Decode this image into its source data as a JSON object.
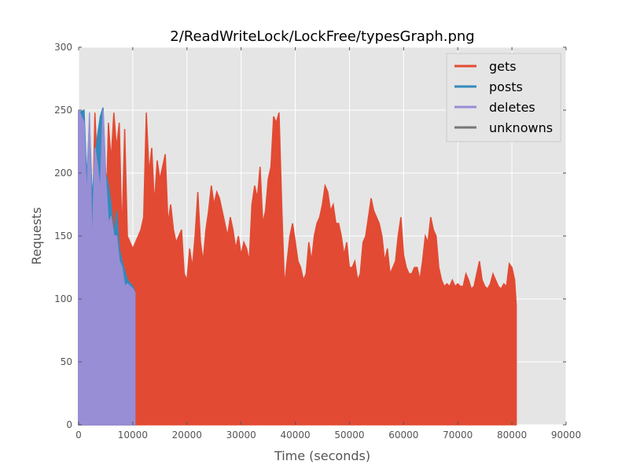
{
  "chart_data": {
    "type": "area",
    "title": "2/ReadWriteLock/LockFree/typesGraph.png",
    "xlabel": "Time (seconds)",
    "ylabel": "Requests",
    "xlim": [
      0,
      90000
    ],
    "ylim": [
      0,
      300
    ],
    "xticks": [
      "0",
      "10000",
      "20000",
      "30000",
      "40000",
      "50000",
      "60000",
      "70000",
      "80000",
      "90000"
    ],
    "yticks": [
      "0",
      "50",
      "100",
      "150",
      "200",
      "250",
      "300"
    ],
    "grid": true,
    "legend_position": "top-right",
    "series": [
      {
        "name": "gets",
        "color": "#e24a33",
        "points": [
          [
            0,
            250
          ],
          [
            1000,
            240
          ],
          [
            1500,
            175
          ],
          [
            2000,
            220
          ],
          [
            2500,
            140
          ],
          [
            3000,
            248
          ],
          [
            3500,
            200
          ],
          [
            4000,
            245
          ],
          [
            4500,
            230
          ],
          [
            5000,
            150
          ],
          [
            5500,
            240
          ],
          [
            6000,
            210
          ],
          [
            6500,
            248
          ],
          [
            7000,
            220
          ],
          [
            7500,
            240
          ],
          [
            8000,
            150
          ],
          [
            8500,
            235
          ],
          [
            9000,
            150
          ],
          [
            10000,
            140
          ],
          [
            11000,
            150
          ],
          [
            11500,
            155
          ],
          [
            12000,
            165
          ],
          [
            12500,
            248
          ],
          [
            13000,
            200
          ],
          [
            13500,
            220
          ],
          [
            14000,
            175
          ],
          [
            14500,
            210
          ],
          [
            15000,
            195
          ],
          [
            15500,
            205
          ],
          [
            16000,
            215
          ],
          [
            16500,
            160
          ],
          [
            17000,
            175
          ],
          [
            17500,
            155
          ],
          [
            18000,
            145
          ],
          [
            18500,
            150
          ],
          [
            19000,
            155
          ],
          [
            19500,
            120
          ],
          [
            20000,
            115
          ],
          [
            20500,
            140
          ],
          [
            21000,
            125
          ],
          [
            21500,
            150
          ],
          [
            22000,
            185
          ],
          [
            22500,
            145
          ],
          [
            23000,
            130
          ],
          [
            23500,
            155
          ],
          [
            24000,
            170
          ],
          [
            24500,
            190
          ],
          [
            25000,
            175
          ],
          [
            25500,
            185
          ],
          [
            26000,
            180
          ],
          [
            26500,
            170
          ],
          [
            27000,
            160
          ],
          [
            27500,
            150
          ],
          [
            28000,
            165
          ],
          [
            28500,
            155
          ],
          [
            29000,
            140
          ],
          [
            29500,
            150
          ],
          [
            30000,
            135
          ],
          [
            30500,
            145
          ],
          [
            31000,
            140
          ],
          [
            31500,
            130
          ],
          [
            32000,
            175
          ],
          [
            32500,
            190
          ],
          [
            33000,
            180
          ],
          [
            33500,
            205
          ],
          [
            34000,
            160
          ],
          [
            34500,
            170
          ],
          [
            35000,
            195
          ],
          [
            35500,
            205
          ],
          [
            36000,
            245
          ],
          [
            36500,
            240
          ],
          [
            37000,
            248
          ],
          [
            37500,
            175
          ],
          [
            38000,
            110
          ],
          [
            38500,
            130
          ],
          [
            39000,
            150
          ],
          [
            39500,
            160
          ],
          [
            40000,
            145
          ],
          [
            40500,
            130
          ],
          [
            41000,
            125
          ],
          [
            41500,
            115
          ],
          [
            42000,
            120
          ],
          [
            42500,
            145
          ],
          [
            43000,
            130
          ],
          [
            43500,
            150
          ],
          [
            44000,
            160
          ],
          [
            44500,
            165
          ],
          [
            45000,
            175
          ],
          [
            45500,
            190
          ],
          [
            46000,
            185
          ],
          [
            46500,
            170
          ],
          [
            47000,
            175
          ],
          [
            47500,
            160
          ],
          [
            48000,
            160
          ],
          [
            48500,
            150
          ],
          [
            49000,
            135
          ],
          [
            49500,
            145
          ],
          [
            50000,
            125
          ],
          [
            50500,
            125
          ],
          [
            51000,
            130
          ],
          [
            51500,
            115
          ],
          [
            52000,
            120
          ],
          [
            52500,
            145
          ],
          [
            53000,
            150
          ],
          [
            53500,
            165
          ],
          [
            54000,
            180
          ],
          [
            54500,
            170
          ],
          [
            55000,
            165
          ],
          [
            55500,
            160
          ],
          [
            56000,
            150
          ],
          [
            56500,
            130
          ],
          [
            57000,
            140
          ],
          [
            57500,
            120
          ],
          [
            58000,
            125
          ],
          [
            58500,
            130
          ],
          [
            59000,
            150
          ],
          [
            59500,
            165
          ],
          [
            60000,
            135
          ],
          [
            60500,
            125
          ],
          [
            61000,
            120
          ],
          [
            61500,
            120
          ],
          [
            62000,
            125
          ],
          [
            62500,
            125
          ],
          [
            63000,
            115
          ],
          [
            63500,
            130
          ],
          [
            64000,
            150
          ],
          [
            64500,
            145
          ],
          [
            65000,
            165
          ],
          [
            65500,
            155
          ],
          [
            66000,
            150
          ],
          [
            66500,
            125
          ],
          [
            67000,
            115
          ],
          [
            67500,
            110
          ],
          [
            68000,
            112
          ],
          [
            68500,
            110
          ],
          [
            69000,
            115
          ],
          [
            69500,
            110
          ],
          [
            70000,
            112
          ],
          [
            70500,
            110
          ],
          [
            71000,
            110
          ],
          [
            71500,
            120
          ],
          [
            72000,
            115
          ],
          [
            72500,
            108
          ],
          [
            73000,
            110
          ],
          [
            73500,
            120
          ],
          [
            74000,
            130
          ],
          [
            74500,
            115
          ],
          [
            75000,
            110
          ],
          [
            75500,
            108
          ],
          [
            76000,
            112
          ],
          [
            76500,
            120
          ],
          [
            77000,
            115
          ],
          [
            77500,
            110
          ],
          [
            78000,
            108
          ],
          [
            78500,
            112
          ],
          [
            79000,
            110
          ],
          [
            79500,
            128
          ],
          [
            80000,
            125
          ],
          [
            80500,
            115
          ],
          [
            80800,
            95
          ]
        ]
      },
      {
        "name": "posts",
        "color": "#348abd",
        "points": [
          [
            0,
            248
          ],
          [
            1000,
            250
          ],
          [
            1500,
            195
          ],
          [
            2000,
            240
          ],
          [
            2500,
            180
          ],
          [
            3000,
            210
          ],
          [
            3500,
            230
          ],
          [
            4000,
            245
          ],
          [
            4500,
            252
          ],
          [
            5000,
            200
          ],
          [
            5500,
            190
          ],
          [
            6000,
            175
          ],
          [
            6500,
            150
          ],
          [
            7000,
            170
          ],
          [
            7500,
            140
          ],
          [
            8000,
            130
          ],
          [
            9000,
            115
          ],
          [
            10000,
            110
          ],
          [
            10400,
            105
          ]
        ]
      },
      {
        "name": "deletes",
        "color": "#988ed5",
        "points": [
          [
            0,
            250
          ],
          [
            500,
            245
          ],
          [
            1000,
            240
          ],
          [
            1500,
            175
          ],
          [
            2000,
            248
          ],
          [
            2500,
            135
          ],
          [
            3000,
            220
          ],
          [
            3500,
            205
          ],
          [
            4000,
            185
          ],
          [
            4500,
            250
          ],
          [
            5000,
            195
          ],
          [
            5500,
            160
          ],
          [
            6000,
            165
          ],
          [
            6500,
            150
          ],
          [
            7000,
            150
          ],
          [
            7500,
            130
          ],
          [
            8000,
            125
          ],
          [
            8500,
            110
          ],
          [
            9000,
            112
          ],
          [
            9500,
            110
          ],
          [
            10000,
            108
          ],
          [
            10400,
            105
          ]
        ]
      },
      {
        "name": "unknowns",
        "color": "#777777",
        "points": []
      }
    ]
  }
}
